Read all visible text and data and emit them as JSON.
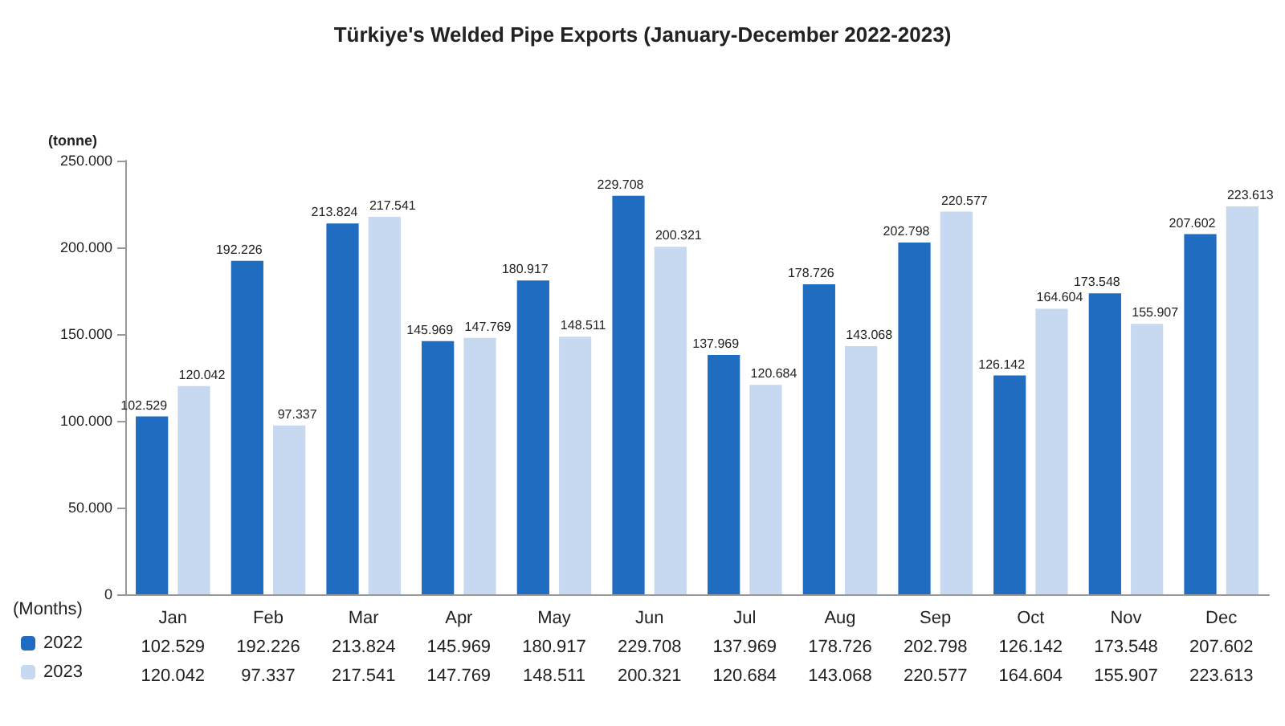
{
  "chart_data": {
    "type": "bar",
    "title": "Türkiye's Welded Pipe Exports (January-December 2022-2023)",
    "ylabel": "(tonne)",
    "xlabel": "(Months)",
    "categories": [
      "Jan",
      "Feb",
      "Mar",
      "Apr",
      "May",
      "Jun",
      "Jul",
      "Aug",
      "Sep",
      "Oct",
      "Nov",
      "Dec"
    ],
    "series": [
      {
        "name": "2022",
        "color": "#1f6cc0",
        "values": [
          102529,
          192226,
          213824,
          145969,
          180917,
          229708,
          137969,
          178726,
          202798,
          126142,
          173548,
          207602
        ],
        "value_labels": [
          "102.529",
          "192.226",
          "213.824",
          "145.969",
          "180.917",
          "229.708",
          "137.969",
          "178.726",
          "202.798",
          "126.142",
          "173.548",
          "207.602"
        ]
      },
      {
        "name": "2023",
        "color": "#c6d9f1",
        "values": [
          120042,
          97337,
          217541,
          147769,
          148511,
          200321,
          120684,
          143068,
          220577,
          164604,
          155907,
          223613
        ],
        "value_labels": [
          "120.042",
          "97.337",
          "217.541",
          "147.769",
          "148.511",
          "200.321",
          "120.684",
          "143.068",
          "220.577",
          "164.604",
          "155.907",
          "223.613"
        ]
      }
    ],
    "ylim": [
      0,
      250000
    ],
    "yticks": [
      {
        "value": 0,
        "label": "0"
      },
      {
        "value": 50000,
        "label": "50.000"
      },
      {
        "value": 100000,
        "label": "100.000"
      },
      {
        "value": 150000,
        "label": "150.000"
      },
      {
        "value": 200000,
        "label": "200.000"
      },
      {
        "value": 250000,
        "label": "250.000"
      }
    ],
    "grid": false,
    "legend": "bottom left"
  }
}
